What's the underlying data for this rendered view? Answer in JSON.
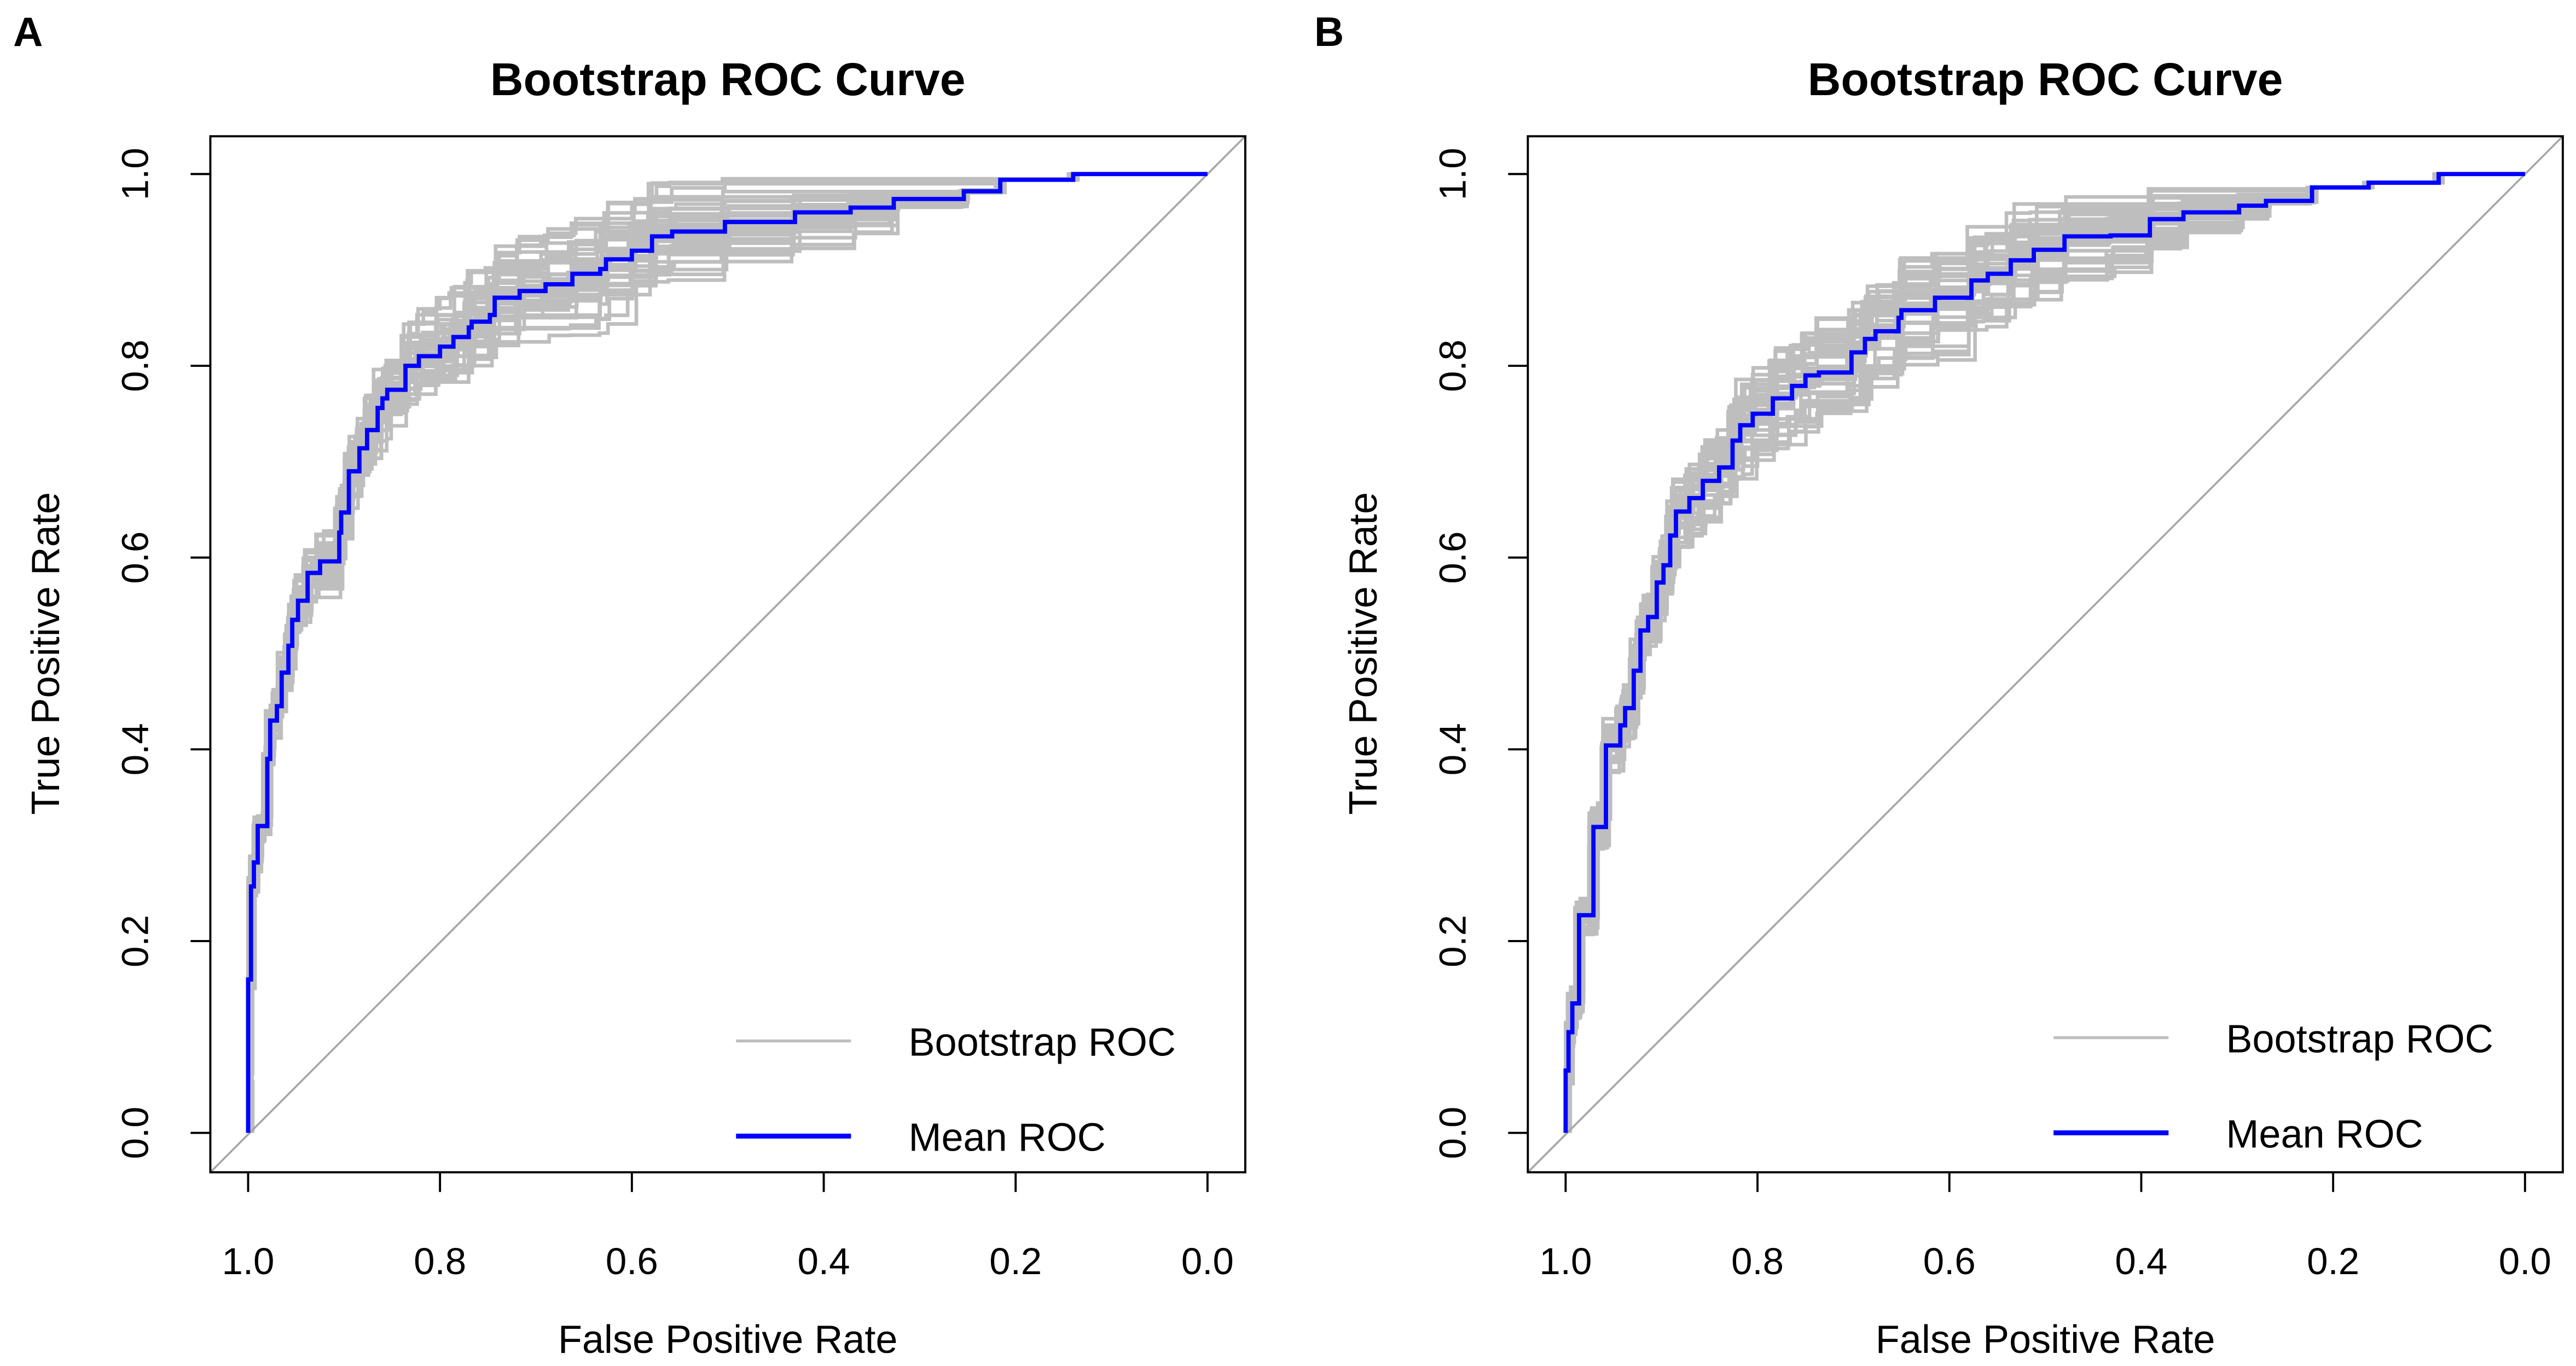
{
  "chart_data": [
    {
      "type": "line",
      "panel_label": "A",
      "title": "Bootstrap ROC Curve",
      "xlabel": "False Positive Rate",
      "ylabel": "True Positive Rate",
      "x_reversed": true,
      "xlim": [
        1.0,
        0.0
      ],
      "ylim": [
        0.0,
        1.0
      ],
      "xticks": [
        "1.0",
        "0.8",
        "0.6",
        "0.4",
        "0.2",
        "0.0"
      ],
      "yticks": [
        "0.0",
        "0.2",
        "0.4",
        "0.6",
        "0.8",
        "1.0"
      ],
      "legend": {
        "position": "bottom-right",
        "entries": [
          {
            "label": "Bootstrap ROC",
            "color": "#bebebe"
          },
          {
            "label": "Mean ROC",
            "color": "#0000ff"
          }
        ]
      },
      "diagonal_color": "#a6a6a6",
      "mean_roc": {
        "name": "Mean ROC",
        "color": "#0000ff",
        "points": [
          [
            1.0,
            0.0
          ],
          [
            1.0,
            0.055
          ],
          [
            0.997,
            0.16
          ],
          [
            0.994,
            0.257
          ],
          [
            0.99,
            0.282
          ],
          [
            0.98,
            0.32
          ],
          [
            0.977,
            0.39
          ],
          [
            0.97,
            0.43
          ],
          [
            0.965,
            0.445
          ],
          [
            0.958,
            0.48
          ],
          [
            0.954,
            0.508
          ],
          [
            0.948,
            0.535
          ],
          [
            0.938,
            0.555
          ],
          [
            0.925,
            0.584
          ],
          [
            0.905,
            0.596
          ],
          [
            0.903,
            0.626
          ],
          [
            0.895,
            0.647
          ],
          [
            0.884,
            0.69
          ],
          [
            0.876,
            0.714
          ],
          [
            0.865,
            0.733
          ],
          [
            0.86,
            0.756
          ],
          [
            0.855,
            0.766
          ],
          [
            0.836,
            0.775
          ],
          [
            0.822,
            0.8
          ],
          [
            0.8,
            0.81
          ],
          [
            0.786,
            0.82
          ],
          [
            0.77,
            0.83
          ],
          [
            0.767,
            0.84
          ],
          [
            0.748,
            0.846
          ],
          [
            0.743,
            0.853
          ],
          [
            0.717,
            0.871
          ],
          [
            0.69,
            0.878
          ],
          [
            0.662,
            0.885
          ],
          [
            0.633,
            0.896
          ],
          [
            0.627,
            0.901
          ],
          [
            0.6,
            0.911
          ],
          [
            0.579,
            0.92
          ],
          [
            0.558,
            0.935
          ],
          [
            0.503,
            0.94
          ],
          [
            0.43,
            0.95
          ],
          [
            0.372,
            0.96
          ],
          [
            0.327,
            0.965
          ],
          [
            0.254,
            0.974
          ],
          [
            0.216,
            0.982
          ],
          [
            0.14,
            0.994
          ],
          [
            0.043,
            1.0
          ],
          [
            0.0,
            1.0
          ]
        ]
      },
      "bootstrap_band_width": 0.07,
      "bootstrap_count": 40
    },
    {
      "type": "line",
      "panel_label": "B",
      "title": "Bootstrap ROC Curve",
      "xlabel": "False Positive Rate",
      "ylabel": "True Positive Rate",
      "x_reversed": true,
      "xlim": [
        1.0,
        0.0
      ],
      "ylim": [
        0.0,
        1.0
      ],
      "xticks": [
        "1.0",
        "0.8",
        "0.6",
        "0.4",
        "0.2",
        "0.0"
      ],
      "yticks": [
        "0.0",
        "0.2",
        "0.4",
        "0.6",
        "0.8",
        "1.0"
      ],
      "legend": {
        "position": "bottom-right",
        "entries": [
          {
            "label": "Bootstrap ROC",
            "color": "#bebebe"
          },
          {
            "label": "Mean ROC",
            "color": "#0000ff"
          }
        ]
      },
      "diagonal_color": "#a6a6a6",
      "mean_roc": {
        "name": "Mean ROC",
        "color": "#0000ff",
        "points": [
          [
            1.0,
            0.0
          ],
          [
            1.0,
            0.053
          ],
          [
            0.997,
            0.065
          ],
          [
            0.993,
            0.105
          ],
          [
            0.986,
            0.135
          ],
          [
            0.971,
            0.227
          ],
          [
            0.958,
            0.319
          ],
          [
            0.943,
            0.404
          ],
          [
            0.938,
            0.425
          ],
          [
            0.929,
            0.443
          ],
          [
            0.922,
            0.482
          ],
          [
            0.914,
            0.524
          ],
          [
            0.905,
            0.538
          ],
          [
            0.898,
            0.574
          ],
          [
            0.891,
            0.592
          ],
          [
            0.885,
            0.623
          ],
          [
            0.871,
            0.648
          ],
          [
            0.857,
            0.662
          ],
          [
            0.84,
            0.68
          ],
          [
            0.826,
            0.694
          ],
          [
            0.818,
            0.722
          ],
          [
            0.805,
            0.738
          ],
          [
            0.784,
            0.75
          ],
          [
            0.764,
            0.766
          ],
          [
            0.75,
            0.779
          ],
          [
            0.736,
            0.79
          ],
          [
            0.702,
            0.793
          ],
          [
            0.688,
            0.814
          ],
          [
            0.677,
            0.828
          ],
          [
            0.653,
            0.836
          ],
          [
            0.65,
            0.85
          ],
          [
            0.615,
            0.858
          ],
          [
            0.577,
            0.871
          ],
          [
            0.56,
            0.889
          ],
          [
            0.536,
            0.896
          ],
          [
            0.512,
            0.91
          ],
          [
            0.48,
            0.921
          ],
          [
            0.432,
            0.935
          ],
          [
            0.391,
            0.936
          ],
          [
            0.356,
            0.953
          ],
          [
            0.298,
            0.96
          ],
          [
            0.27,
            0.967
          ],
          [
            0.222,
            0.972
          ],
          [
            0.163,
            0.986
          ],
          [
            0.09,
            0.991
          ],
          [
            0.042,
            1.0
          ],
          [
            0.0,
            1.0
          ]
        ]
      },
      "bootstrap_band_width": 0.07,
      "bootstrap_count": 40
    }
  ]
}
